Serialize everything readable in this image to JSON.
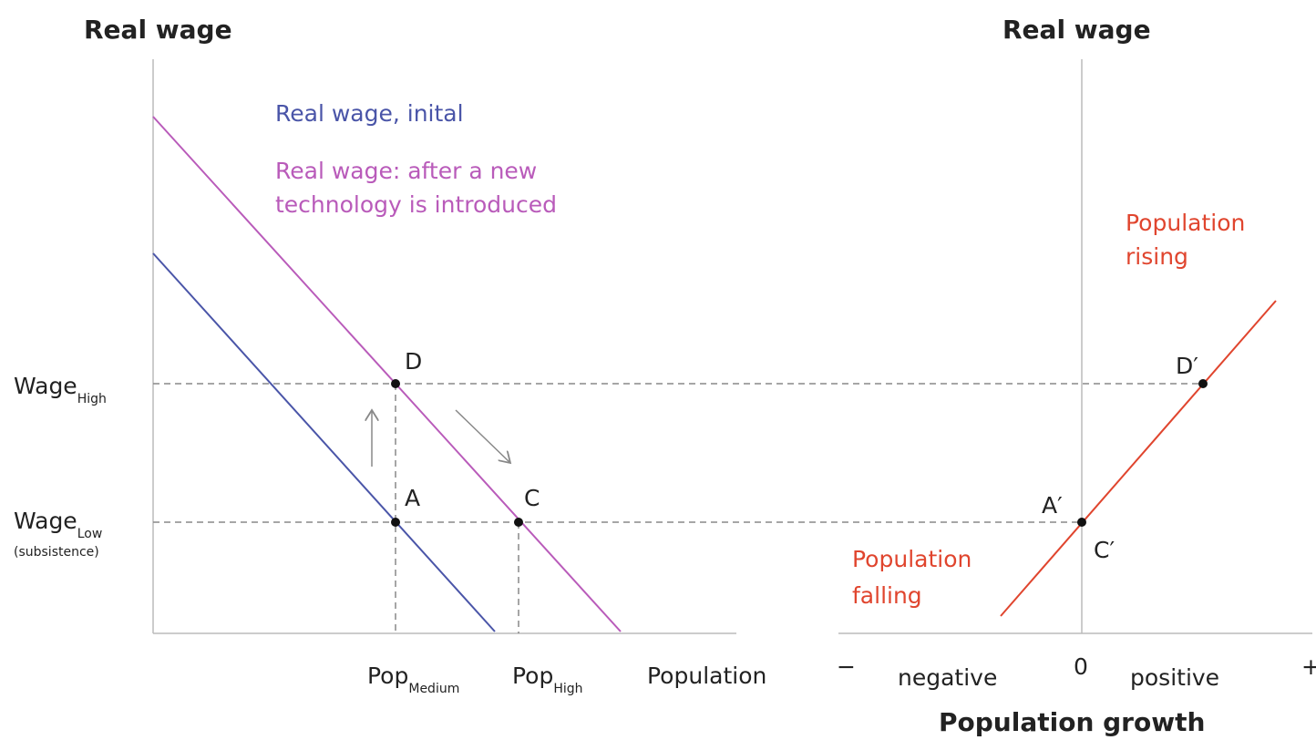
{
  "left_panel": {
    "axis_title": "Real wage",
    "legend_initial": "Real wage, inital",
    "legend_after": [
      "Real wage: after a new",
      "technology is introduced"
    ],
    "y_labels": [
      {
        "main": "Wage",
        "sub": "High"
      },
      {
        "main": "Wage",
        "sub": "Low",
        "note": "(subsistence)"
      }
    ],
    "x_labels": [
      {
        "main": "Pop",
        "sub": "Medium"
      },
      {
        "main": "Pop",
        "sub": "High"
      },
      "Population"
    ],
    "points": [
      "D",
      "A",
      "C"
    ]
  },
  "right_panel": {
    "axis_title": "Real wage",
    "points": [
      "D′",
      "A′",
      "C′"
    ],
    "annotation_rising": [
      "Population",
      "rising"
    ],
    "annotation_falling": [
      "Population",
      "falling"
    ],
    "x_labels": [
      "−",
      "negative",
      "0",
      "positive",
      "+"
    ],
    "x_axis_title": "Population growth"
  }
}
